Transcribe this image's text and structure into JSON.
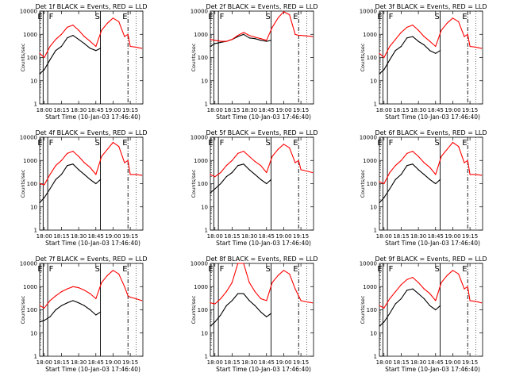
{
  "figure": {
    "x_tick_labels": [
      "18:00",
      "18:15",
      "18:30",
      "18:45",
      "19:00",
      "19:15"
    ],
    "y_tick_labels": [
      "1",
      "10",
      "100",
      "1000",
      "10000"
    ],
    "xlabel": "Start Time (10-Jan-03 17:46:40)",
    "ylabel": "Counts/sec",
    "markers": [
      "E",
      "F",
      "S",
      "E"
    ],
    "colors": {
      "events": "#000000",
      "lld": "#ff0000"
    }
  },
  "chart_data": [
    {
      "type": "line",
      "title": "Det 1f BLACK = Events, RED = LLD",
      "xlabel": "Start Time (10-Jan-03 17:46:40)",
      "ylabel": "Counts/sec",
      "x_ticks": [
        "18:00",
        "18:15",
        "18:30",
        "18:45",
        "19:00",
        "19:15"
      ],
      "ylim": [
        1,
        10000
      ],
      "yscale": "log",
      "series": [
        {
          "name": "Events",
          "color": "#000000",
          "x": [
            "17:56",
            "18:00",
            "18:05",
            "18:10",
            "18:15",
            "18:20",
            "18:25",
            "18:30",
            "18:35",
            "18:40",
            "18:45",
            "18:49"
          ],
          "y": [
            20,
            30,
            80,
            200,
            300,
            700,
            900,
            600,
            400,
            250,
            200,
            250
          ]
        },
        {
          "name": "LLD",
          "color": "#ff0000",
          "x": [
            "17:56",
            "18:00",
            "18:05",
            "18:10",
            "18:15",
            "18:20",
            "18:25",
            "18:30",
            "18:35",
            "18:40",
            "18:45",
            "18:50",
            "18:55",
            "19:00",
            "19:05",
            "19:10",
            "19:13",
            "19:15",
            "19:20",
            "19:25"
          ],
          "y": [
            150,
            100,
            300,
            600,
            1000,
            2000,
            2500,
            1500,
            800,
            500,
            300,
            1500,
            3000,
            5000,
            3500,
            800,
            1000,
            300,
            280,
            250
          ]
        }
      ]
    },
    {
      "type": "line",
      "title": "Det 2f BLACK = Events, RED = LLD",
      "xlabel": "Start Time (10-Jan-03 17:46:40)",
      "ylabel": "Counts/sec",
      "x_ticks": [
        "18:00",
        "18:15",
        "18:30",
        "18:45",
        "19:00",
        "19:15"
      ],
      "ylim": [
        1,
        10000
      ],
      "yscale": "log",
      "series": [
        {
          "name": "Events",
          "color": "#000000",
          "x": [
            "17:56",
            "18:00",
            "18:05",
            "18:10",
            "18:15",
            "18:20",
            "18:25",
            "18:30",
            "18:35",
            "18:40",
            "18:45",
            "18:49"
          ],
          "y": [
            300,
            400,
            450,
            500,
            600,
            800,
            1000,
            700,
            650,
            550,
            500,
            550
          ]
        },
        {
          "name": "LLD",
          "color": "#ff0000",
          "x": [
            "17:56",
            "18:00",
            "18:05",
            "18:10",
            "18:15",
            "18:20",
            "18:25",
            "18:30",
            "18:35",
            "18:40",
            "18:45",
            "18:50",
            "18:55",
            "19:00",
            "19:05",
            "19:10",
            "19:13",
            "19:15",
            "19:20",
            "19:25"
          ],
          "y": [
            600,
            550,
            500,
            500,
            600,
            900,
            1200,
            900,
            750,
            650,
            550,
            2000,
            5000,
            9500,
            7000,
            1000,
            900,
            900,
            850,
            800
          ]
        }
      ]
    },
    {
      "type": "line",
      "title": "Det 3f BLACK = Events, RED = LLD",
      "xlabel": "Start Time (10-Jan-03 17:46:40)",
      "ylabel": "Counts/sec",
      "x_ticks": [
        "18:00",
        "18:15",
        "18:30",
        "18:45",
        "19:00",
        "19:15"
      ],
      "ylim": [
        1,
        10000
      ],
      "yscale": "log",
      "series": [
        {
          "name": "Events",
          "color": "#000000",
          "x": [
            "17:56",
            "18:00",
            "18:05",
            "18:10",
            "18:15",
            "18:20",
            "18:25",
            "18:30",
            "18:35",
            "18:40",
            "18:45",
            "18:49"
          ],
          "y": [
            20,
            30,
            80,
            200,
            300,
            700,
            800,
            500,
            350,
            200,
            150,
            200
          ]
        },
        {
          "name": "LLD",
          "color": "#ff0000",
          "x": [
            "17:56",
            "18:00",
            "18:05",
            "18:10",
            "18:15",
            "18:20",
            "18:25",
            "18:30",
            "18:35",
            "18:40",
            "18:45",
            "18:50",
            "18:55",
            "19:00",
            "19:05",
            "19:10",
            "19:13",
            "19:15",
            "19:20",
            "19:25"
          ],
          "y": [
            150,
            100,
            300,
            600,
            1200,
            2000,
            2500,
            1500,
            800,
            500,
            300,
            1500,
            3000,
            5000,
            3500,
            800,
            1000,
            300,
            280,
            250
          ]
        }
      ]
    },
    {
      "type": "line",
      "title": "Det 4f BLACK = Events, RED = LLD",
      "xlabel": "Start Time (10-Jan-03 17:46:40)",
      "ylabel": "Counts/sec",
      "x_ticks": [
        "18:00",
        "18:15",
        "18:30",
        "18:45",
        "19:00",
        "19:15"
      ],
      "ylim": [
        1,
        10000
      ],
      "yscale": "log",
      "series": [
        {
          "name": "Events",
          "color": "#000000",
          "x": [
            "17:56",
            "18:00",
            "18:05",
            "18:10",
            "18:15",
            "18:20",
            "18:25",
            "18:30",
            "18:35",
            "18:40",
            "18:45",
            "18:49"
          ],
          "y": [
            15,
            25,
            60,
            150,
            250,
            600,
            700,
            400,
            250,
            150,
            100,
            150
          ]
        },
        {
          "name": "LLD",
          "color": "#ff0000",
          "x": [
            "17:56",
            "18:00",
            "18:05",
            "18:10",
            "18:15",
            "18:20",
            "18:25",
            "18:30",
            "18:35",
            "18:40",
            "18:45",
            "18:50",
            "18:55",
            "19:00",
            "19:05",
            "19:10",
            "19:13",
            "19:15",
            "19:20",
            "19:25"
          ],
          "y": [
            100,
            90,
            250,
            600,
            1000,
            2000,
            2500,
            1500,
            800,
            500,
            250,
            1500,
            3000,
            6000,
            4000,
            800,
            1000,
            250,
            250,
            230
          ]
        }
      ]
    },
    {
      "type": "line",
      "title": "Det 5f BLACK = Events, RED = LLD",
      "xlabel": "Start Time (10-Jan-03 17:46:40)",
      "ylabel": "Counts/sec",
      "x_ticks": [
        "18:00",
        "18:15",
        "18:30",
        "18:45",
        "19:00",
        "19:15"
      ],
      "ylim": [
        1,
        10000
      ],
      "yscale": "log",
      "series": [
        {
          "name": "Events",
          "color": "#000000",
          "x": [
            "17:56",
            "18:00",
            "18:05",
            "18:10",
            "18:15",
            "18:20",
            "18:25",
            "18:30",
            "18:35",
            "18:40",
            "18:45",
            "18:49"
          ],
          "y": [
            40,
            60,
            100,
            200,
            300,
            600,
            700,
            400,
            250,
            150,
            100,
            150
          ]
        },
        {
          "name": "LLD",
          "color": "#ff0000",
          "x": [
            "17:56",
            "18:00",
            "18:05",
            "18:10",
            "18:15",
            "18:20",
            "18:25",
            "18:30",
            "18:35",
            "18:40",
            "18:45",
            "18:50",
            "18:55",
            "19:00",
            "19:05",
            "19:10",
            "19:13",
            "19:15",
            "19:20",
            "19:25"
          ],
          "y": [
            250,
            200,
            300,
            600,
            1000,
            2000,
            2500,
            1500,
            900,
            600,
            300,
            1500,
            3000,
            5000,
            3500,
            800,
            1000,
            400,
            350,
            300
          ]
        }
      ]
    },
    {
      "type": "line",
      "title": "Det 6f BLACK = Events, RED = LLD",
      "xlabel": "Start Time (10-Jan-03 17:46:40)",
      "ylabel": "Counts/sec",
      "x_ticks": [
        "18:00",
        "18:15",
        "18:30",
        "18:45",
        "19:00",
        "19:15"
      ],
      "ylim": [
        1,
        10000
      ],
      "yscale": "log",
      "series": [
        {
          "name": "Events",
          "color": "#000000",
          "x": [
            "17:56",
            "18:00",
            "18:05",
            "18:10",
            "18:15",
            "18:20",
            "18:25",
            "18:30",
            "18:35",
            "18:40",
            "18:45",
            "18:49"
          ],
          "y": [
            15,
            25,
            60,
            150,
            250,
            600,
            700,
            400,
            250,
            150,
            100,
            150
          ]
        },
        {
          "name": "LLD",
          "color": "#ff0000",
          "x": [
            "17:56",
            "18:00",
            "18:05",
            "18:10",
            "18:15",
            "18:20",
            "18:25",
            "18:30",
            "18:35",
            "18:40",
            "18:45",
            "18:50",
            "18:55",
            "19:00",
            "19:05",
            "19:10",
            "19:13",
            "19:15",
            "19:20",
            "19:25"
          ],
          "y": [
            120,
            100,
            300,
            600,
            1000,
            2000,
            2500,
            1500,
            800,
            500,
            250,
            1500,
            3000,
            6000,
            4000,
            800,
            1000,
            250,
            250,
            230
          ]
        }
      ]
    },
    {
      "type": "line",
      "title": "Det 7f BLACK = Events, RED = LLD",
      "xlabel": "Start Time (10-Jan-03 17:46:40)",
      "ylabel": "Counts/sec",
      "x_ticks": [
        "18:00",
        "18:15",
        "18:30",
        "18:45",
        "19:00",
        "19:15"
      ],
      "ylim": [
        1,
        10000
      ],
      "yscale": "log",
      "series": [
        {
          "name": "Events",
          "color": "#000000",
          "x": [
            "17:56",
            "18:00",
            "18:05",
            "18:10",
            "18:15",
            "18:20",
            "18:25",
            "18:30",
            "18:35",
            "18:40",
            "18:45",
            "18:49"
          ],
          "y": [
            30,
            35,
            50,
            100,
            150,
            200,
            250,
            200,
            150,
            100,
            60,
            80
          ]
        },
        {
          "name": "LLD",
          "color": "#ff0000",
          "x": [
            "17:56",
            "18:00",
            "18:05",
            "18:10",
            "18:15",
            "18:20",
            "18:25",
            "18:30",
            "18:35",
            "18:40",
            "18:45",
            "18:50",
            "18:55",
            "19:00",
            "19:05",
            "19:10",
            "19:13",
            "19:15",
            "19:20",
            "19:25"
          ],
          "y": [
            150,
            120,
            250,
            400,
            600,
            800,
            1000,
            900,
            700,
            500,
            300,
            1500,
            3000,
            5000,
            3500,
            1000,
            400,
            350,
            300,
            250
          ]
        }
      ]
    },
    {
      "type": "line",
      "title": "Det 8f BLACK = Events, RED = LLD",
      "xlabel": "Start Time (10-Jan-03 17:46:40)",
      "ylabel": "Counts/sec",
      "x_ticks": [
        "18:00",
        "18:15",
        "18:30",
        "18:45",
        "19:00",
        "19:15"
      ],
      "ylim": [
        1,
        10000
      ],
      "yscale": "log",
      "series": [
        {
          "name": "Events",
          "color": "#000000",
          "x": [
            "17:56",
            "18:00",
            "18:05",
            "18:10",
            "18:15",
            "18:20",
            "18:25",
            "18:30",
            "18:35",
            "18:40",
            "18:45",
            "18:49"
          ],
          "y": [
            20,
            30,
            60,
            150,
            250,
            500,
            500,
            250,
            150,
            80,
            50,
            70
          ]
        },
        {
          "name": "LLD",
          "color": "#ff0000",
          "x": [
            "17:56",
            "18:00",
            "18:05",
            "18:10",
            "18:15",
            "18:20",
            "18:25",
            "18:30",
            "18:35",
            "18:40",
            "18:45",
            "18:50",
            "18:55",
            "19:00",
            "19:05",
            "19:10",
            "19:13",
            "19:15",
            "19:20",
            "19:25"
          ],
          "y": [
            200,
            180,
            300,
            600,
            1500,
            10000,
            10000,
            1500,
            600,
            300,
            250,
            1500,
            3000,
            5000,
            3500,
            800,
            400,
            250,
            220,
            200
          ]
        }
      ]
    },
    {
      "type": "line",
      "title": "Det 9f BLACK = Events, RED = LLD",
      "xlabel": "Start Time (10-Jan-03 17:46:40)",
      "ylabel": "Counts/sec",
      "x_ticks": [
        "18:00",
        "18:15",
        "18:30",
        "18:45",
        "19:00",
        "19:15"
      ],
      "ylim": [
        1,
        10000
      ],
      "yscale": "log",
      "series": [
        {
          "name": "Events",
          "color": "#000000",
          "x": [
            "17:56",
            "18:00",
            "18:05",
            "18:10",
            "18:15",
            "18:20",
            "18:25",
            "18:30",
            "18:35",
            "18:40",
            "18:45",
            "18:49"
          ],
          "y": [
            20,
            30,
            70,
            180,
            300,
            700,
            800,
            500,
            300,
            150,
            100,
            150
          ]
        },
        {
          "name": "LLD",
          "color": "#ff0000",
          "x": [
            "17:56",
            "18:00",
            "18:05",
            "18:10",
            "18:15",
            "18:20",
            "18:25",
            "18:30",
            "18:35",
            "18:40",
            "18:45",
            "18:50",
            "18:55",
            "19:00",
            "19:05",
            "19:10",
            "19:13",
            "19:15",
            "19:20",
            "19:25"
          ],
          "y": [
            150,
            120,
            300,
            600,
            1200,
            2000,
            2500,
            1500,
            800,
            500,
            250,
            1500,
            3000,
            5000,
            3500,
            800,
            1000,
            250,
            230,
            200
          ]
        }
      ]
    }
  ]
}
